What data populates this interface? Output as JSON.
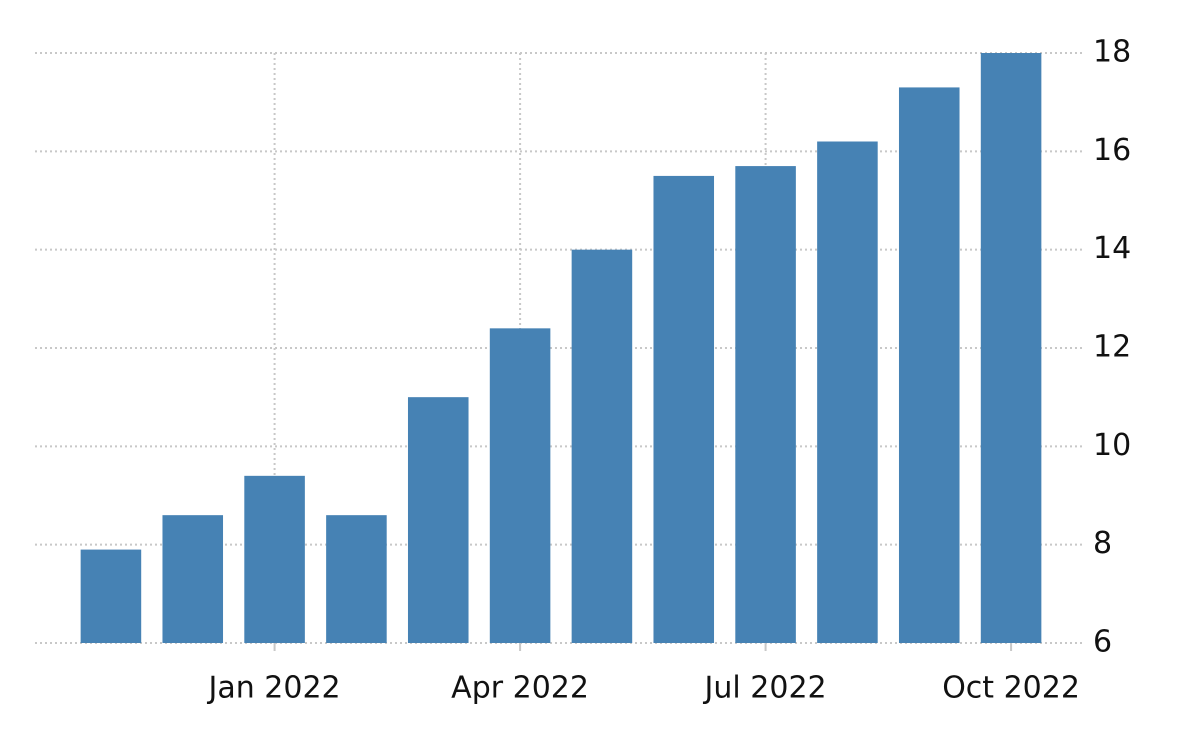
{
  "chart_data": {
    "type": "bar",
    "categories": [
      null,
      null,
      "Jan 2022",
      null,
      null,
      "Apr 2022",
      null,
      null,
      "Jul 2022",
      null,
      null,
      "Oct 2022"
    ],
    "values": [
      7.9,
      8.6,
      9.4,
      8.6,
      11.0,
      12.4,
      14.0,
      15.5,
      15.7,
      16.2,
      17.3,
      18.0
    ],
    "color": "#4682b4",
    "ylim": [
      6,
      18
    ],
    "yticks": [
      6,
      8,
      10,
      12,
      14,
      16,
      18
    ],
    "grid": true
  }
}
